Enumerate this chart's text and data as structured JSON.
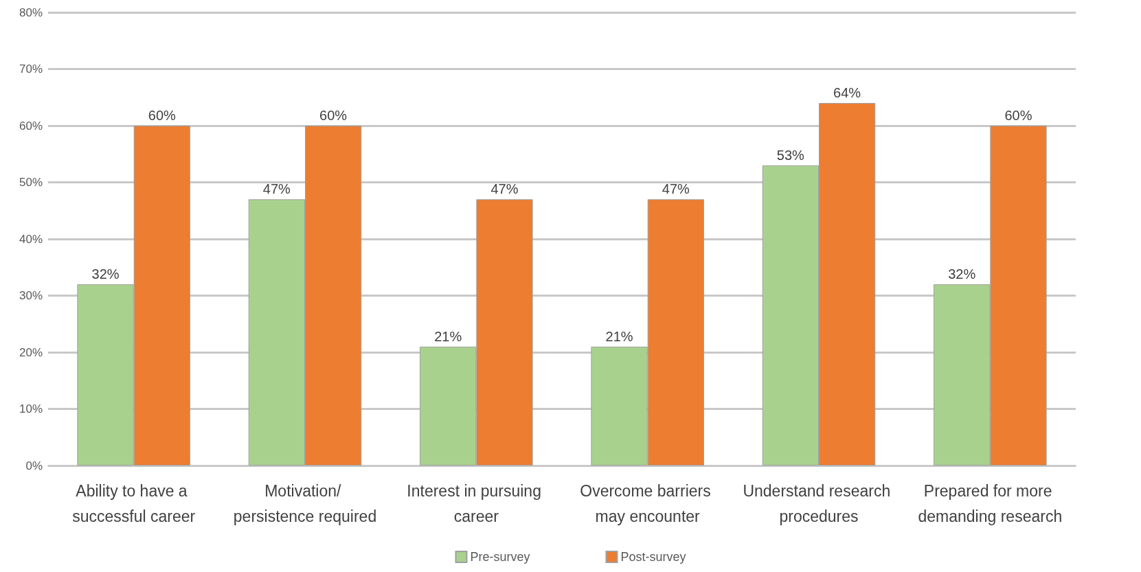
{
  "chart_data": {
    "type": "bar",
    "categories": [
      "Ability to have a successful career",
      "Motivation/ persistence required",
      "Interest in pursuing career",
      "Overcome barriers may encounter",
      "Understand research procedures",
      "Prepared for more demanding research"
    ],
    "series": [
      {
        "name": "Pre-survey",
        "color": "#a9d18e",
        "values": [
          32,
          47,
          21,
          21,
          53,
          32
        ],
        "value_labels": [
          "32%",
          "47%",
          "21%",
          "21%",
          "53%",
          "32%"
        ]
      },
      {
        "name": "Post-survey",
        "color": "#ed7d31",
        "values": [
          60,
          60,
          47,
          47,
          64,
          60
        ],
        "value_labels": [
          "60%",
          "60%",
          "47%",
          "47%",
          "64%",
          "60%"
        ]
      }
    ],
    "ylim": [
      0,
      80
    ],
    "yticks": [
      {
        "value": 0,
        "label": "0%"
      },
      {
        "value": 10,
        "label": "10%"
      },
      {
        "value": 20,
        "label": "20%"
      },
      {
        "value": 30,
        "label": "30%"
      },
      {
        "value": 40,
        "label": "40%"
      },
      {
        "value": 50,
        "label": "50%"
      },
      {
        "value": 60,
        "label": "60%"
      },
      {
        "value": 70,
        "label": "70%"
      },
      {
        "value": 80,
        "label": "80%"
      }
    ],
    "grid": "y",
    "legend": "bottom"
  }
}
